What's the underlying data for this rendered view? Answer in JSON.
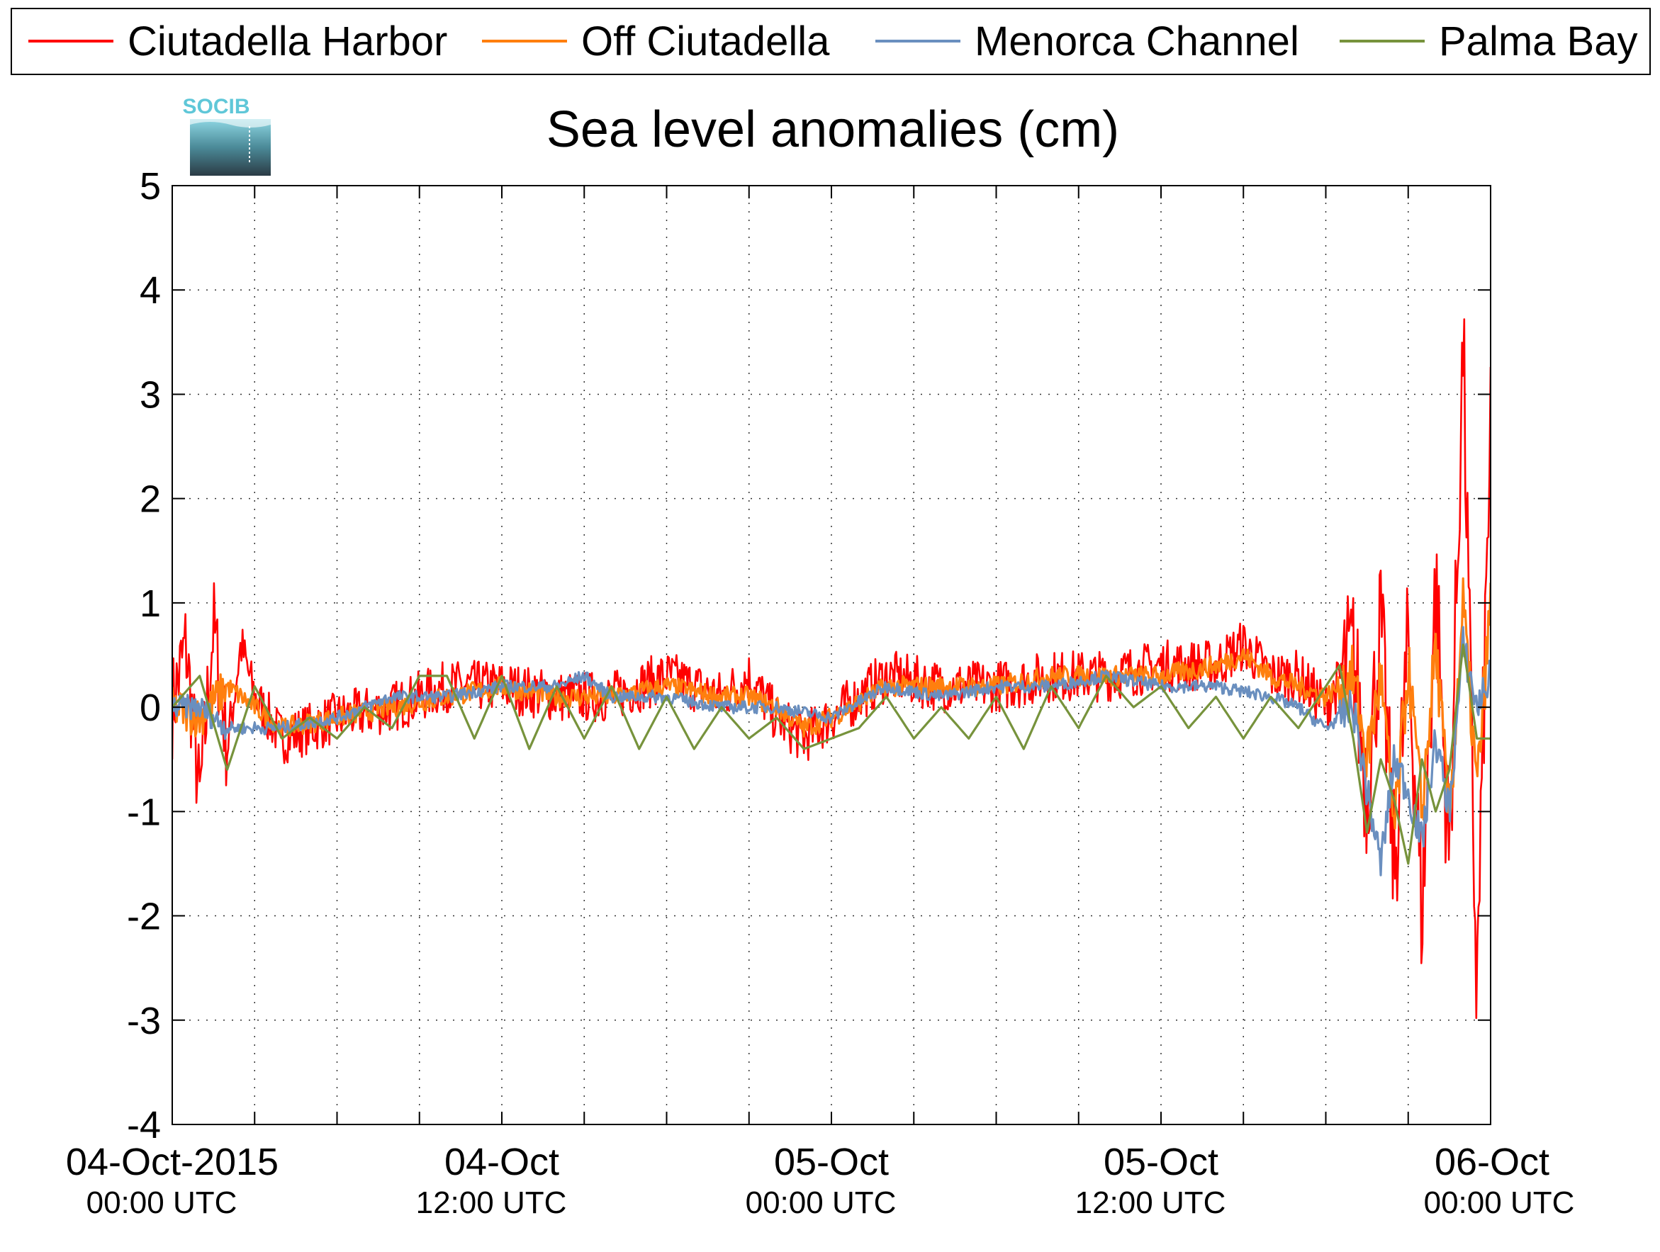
{
  "chart_data": {
    "type": "line",
    "title": "Sea level anomalies (cm)",
    "logo_text": "SOCIB",
    "ylim": [
      -4,
      5
    ],
    "yticks": [
      -4,
      -3,
      -2,
      -1,
      0,
      1,
      2,
      3,
      4,
      5
    ],
    "ytick_labels": [
      "-4",
      "-3",
      "-2",
      "-1",
      "0",
      "1",
      "2",
      "3",
      "4",
      "5"
    ],
    "xlim": [
      "2015-10-04 00:00",
      "2015-10-06 00:00"
    ],
    "xticks_hours": [
      0,
      12,
      24,
      36,
      48
    ],
    "xtick_labels": [
      {
        "date": "04-Oct-2015",
        "time": "00:00 UTC"
      },
      {
        "date": "04-Oct",
        "time": "12:00 UTC"
      },
      {
        "date": "05-Oct",
        "time": "00:00 UTC"
      },
      {
        "date": "05-Oct",
        "time": "12:00 UTC"
      },
      {
        "date": "06-Oct",
        "time": "00:00 UTC"
      }
    ],
    "minor_tick_step_hours": 3,
    "grid": true,
    "legend_position": "top",
    "series": [
      {
        "name": "Ciutadella Harbor",
        "color": "#ff0000",
        "noise": 0.25,
        "x_hours": [
          0,
          0.5,
          1,
          1.5,
          2,
          2.5,
          3,
          4,
          5,
          6,
          8,
          10,
          12,
          14,
          16,
          18,
          20,
          21,
          22,
          23,
          24,
          26,
          28,
          30,
          32,
          34,
          36,
          38,
          39,
          40,
          41,
          42,
          43,
          43.5,
          44,
          44.5,
          45,
          45.5,
          46,
          46.5,
          47,
          47.5,
          48
        ],
        "values": [
          0.0,
          0.6,
          -0.9,
          0.8,
          -0.4,
          0.6,
          0.1,
          -0.3,
          -0.2,
          -0.1,
          0.0,
          0.2,
          0.2,
          0.1,
          0.1,
          0.3,
          0.1,
          0.3,
          -0.1,
          -0.3,
          -0.1,
          0.3,
          0.2,
          0.2,
          0.3,
          0.3,
          0.4,
          0.4,
          0.6,
          0.3,
          0.3,
          0.0,
          0.5,
          -0.8,
          0.8,
          -1.6,
          0.6,
          -2.0,
          1.2,
          -1.5,
          3.5,
          -2.8,
          2.8
        ]
      },
      {
        "name": "Off Ciutadella",
        "color": "#ff7f0e",
        "noise": 0.1,
        "x_hours": [
          0,
          1,
          2,
          3,
          4,
          6,
          8,
          10,
          12,
          14,
          16,
          18,
          20,
          21,
          22,
          23,
          24,
          26,
          28,
          30,
          32,
          34,
          36,
          38,
          39,
          40,
          41,
          42,
          43,
          43.5,
          44,
          44.5,
          45,
          45.5,
          46,
          46.5,
          47,
          47.5,
          48
        ],
        "values": [
          0.0,
          -0.1,
          0.2,
          0.0,
          -0.2,
          -0.1,
          0.0,
          0.1,
          0.2,
          0.1,
          0.1,
          0.2,
          0.1,
          0.1,
          0.0,
          -0.2,
          -0.1,
          0.2,
          0.2,
          0.2,
          0.3,
          0.3,
          0.3,
          0.4,
          0.5,
          0.3,
          0.2,
          0.1,
          0.3,
          -0.5,
          0.3,
          -1.2,
          0.4,
          -1.0,
          0.6,
          -1.1,
          1.0,
          -0.8,
          1.0
        ]
      },
      {
        "name": "Menorca Channel",
        "color": "#6a8fbf",
        "noise": 0.06,
        "x_hours": [
          0,
          1,
          2,
          3,
          4,
          6,
          8,
          10,
          12,
          14,
          15,
          16,
          18,
          20,
          22,
          24,
          26,
          28,
          30,
          32,
          34,
          36,
          38,
          40,
          41,
          42,
          43,
          43.5,
          44,
          44.5,
          45,
          45.5,
          46,
          46.5,
          47,
          47.5,
          48
        ],
        "values": [
          0.0,
          0.0,
          -0.2,
          -0.2,
          -0.2,
          -0.1,
          0.1,
          0.1,
          0.2,
          0.2,
          0.3,
          0.1,
          0.1,
          0.0,
          0.0,
          -0.1,
          0.2,
          0.1,
          0.2,
          0.2,
          0.3,
          0.2,
          0.2,
          0.1,
          0.0,
          -0.2,
          0.0,
          -0.8,
          -1.5,
          -0.5,
          -0.8,
          -1.3,
          -0.3,
          -1.0,
          0.6,
          0.0,
          0.3
        ]
      },
      {
        "name": "Palma Bay",
        "color": "#77933c",
        "noise": 0.0,
        "x_hours": [
          0,
          1,
          2,
          3,
          4,
          5,
          6,
          7,
          8,
          9,
          10,
          11,
          12,
          13,
          14,
          15,
          16,
          17,
          18,
          19,
          20,
          21,
          22,
          23,
          24,
          25,
          26,
          27,
          28,
          29,
          30,
          31,
          32,
          33,
          34,
          35,
          36,
          37,
          38,
          39,
          40,
          41,
          42,
          42.5,
          43,
          43.5,
          44,
          44.5,
          45,
          45.5,
          46,
          46.5,
          47,
          47.5,
          48
        ],
        "values": [
          0.0,
          0.3,
          -0.6,
          0.2,
          -0.3,
          -0.1,
          -0.3,
          0.0,
          -0.2,
          0.3,
          0.3,
          -0.3,
          0.3,
          -0.4,
          0.2,
          -0.3,
          0.2,
          -0.4,
          0.1,
          -0.4,
          0.0,
          -0.3,
          -0.1,
          -0.4,
          -0.3,
          -0.2,
          0.1,
          -0.3,
          0.0,
          -0.3,
          0.1,
          -0.4,
          0.2,
          -0.2,
          0.3,
          0.0,
          0.2,
          -0.2,
          0.1,
          -0.3,
          0.1,
          -0.2,
          0.2,
          0.4,
          -0.3,
          -1.2,
          -0.5,
          -0.9,
          -1.5,
          -0.5,
          -1.0,
          -0.6,
          0.6,
          -0.3,
          -0.3
        ]
      }
    ]
  }
}
